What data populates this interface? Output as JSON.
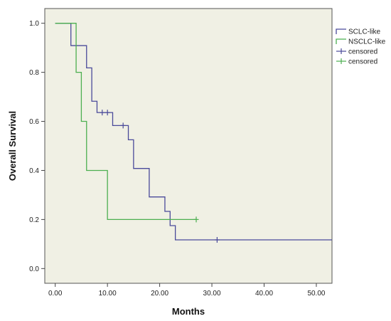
{
  "chart_data": {
    "type": "line",
    "subtype": "kaplan-meier-step",
    "title": "",
    "xlabel": "Months",
    "ylabel": "Overall Survival",
    "xlim": [
      -2,
      53
    ],
    "ylim": [
      -0.06,
      1.06
    ],
    "x_ticks": [
      0,
      10,
      20,
      30,
      40,
      50
    ],
    "x_tick_labels": [
      "0.00",
      "10.00",
      "20.00",
      "30.00",
      "40.00",
      "50.00"
    ],
    "y_ticks": [
      0,
      0.2,
      0.4,
      0.6,
      0.8,
      1.0
    ],
    "y_tick_labels": [
      "0.0",
      "0.2",
      "0.4",
      "0.6",
      "0.8",
      "1.0"
    ],
    "grid": false,
    "plot_background": "#f0f0e4",
    "legend_position": "right",
    "series": [
      {
        "name": "SCLC-like",
        "color": "#4a4a9a",
        "steps": [
          [
            0,
            1.0
          ],
          [
            3,
            0.909
          ],
          [
            6,
            0.818
          ],
          [
            7,
            0.682
          ],
          [
            8,
            0.636
          ],
          [
            11,
            0.583
          ],
          [
            14,
            0.525
          ],
          [
            15,
            0.408
          ],
          [
            18,
            0.292
          ],
          [
            21,
            0.233
          ],
          [
            22,
            0.175
          ],
          [
            23,
            0.117
          ],
          [
            53,
            0.117
          ]
        ],
        "censored": [
          [
            9,
            0.636
          ],
          [
            10,
            0.636
          ],
          [
            13,
            0.583
          ],
          [
            31,
            0.117
          ]
        ]
      },
      {
        "name": "NSCLC-like",
        "color": "#4caf50",
        "steps": [
          [
            0,
            1.0
          ],
          [
            4,
            0.8
          ],
          [
            5,
            0.6
          ],
          [
            6,
            0.4
          ],
          [
            10,
            0.2
          ],
          [
            27,
            0.2
          ]
        ],
        "censored": [
          [
            27,
            0.2
          ]
        ]
      }
    ],
    "legend": [
      {
        "label": "SCLC-like",
        "kind": "line",
        "color": "#4a4a9a"
      },
      {
        "label": "NSCLC-like",
        "kind": "line",
        "color": "#4caf50"
      },
      {
        "label": "censored",
        "kind": "censor",
        "color": "#4a4a9a"
      },
      {
        "label": "censored",
        "kind": "censor",
        "color": "#4caf50"
      }
    ]
  }
}
